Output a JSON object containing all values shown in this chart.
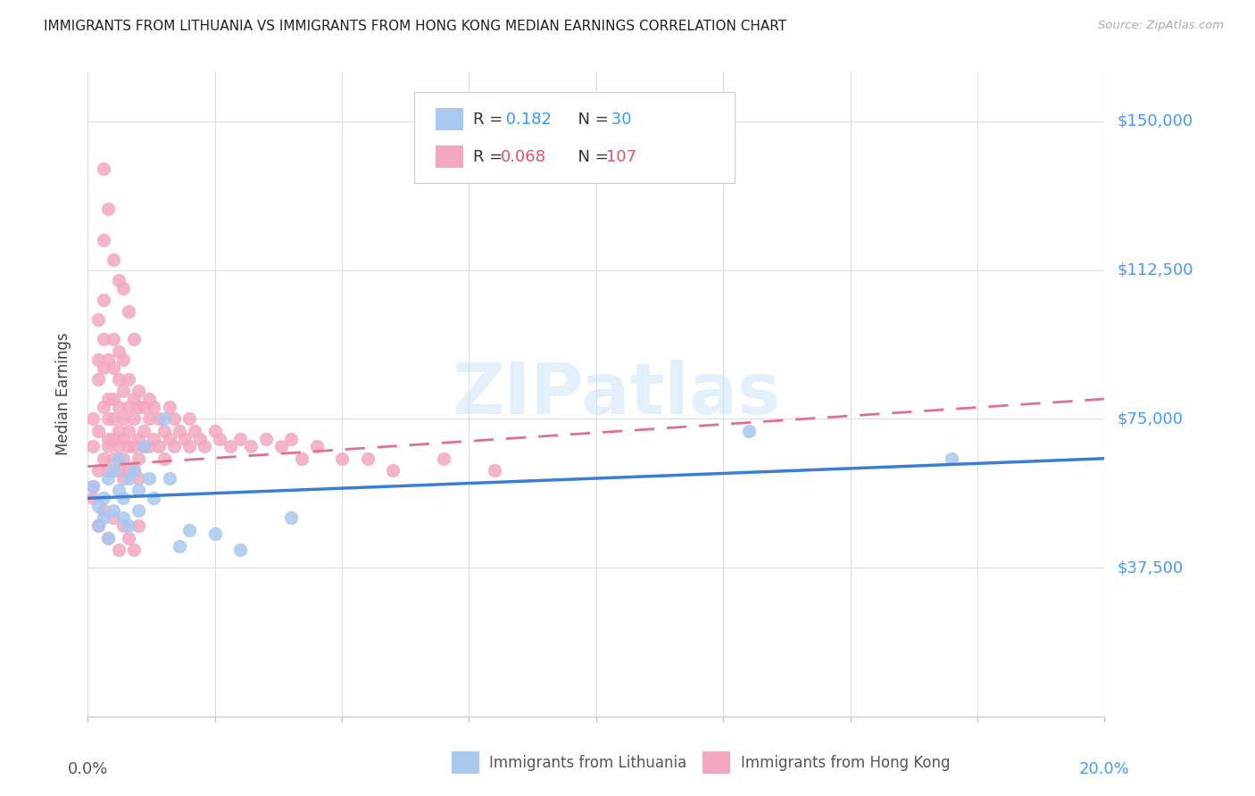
{
  "title": "IMMIGRANTS FROM LITHUANIA VS IMMIGRANTS FROM HONG KONG MEDIAN EARNINGS CORRELATION CHART",
  "source": "Source: ZipAtlas.com",
  "ylabel": "Median Earnings",
  "yticks": [
    0,
    37500,
    75000,
    112500,
    150000
  ],
  "ytick_labels": [
    "",
    "$37,500",
    "$75,000",
    "$112,500",
    "$150,000"
  ],
  "xlim": [
    0.0,
    0.2
  ],
  "ylim": [
    0,
    162500
  ],
  "lithuania_color": "#a8c8f0",
  "hong_kong_color": "#f4a8c0",
  "lithuania_line_color": "#3a7fd5",
  "hong_kong_line_color": "#e07090",
  "watermark": "ZIPatlas",
  "background_color": "#ffffff",
  "grid_color": "#dddddd",
  "title_color": "#222222",
  "source_color": "#aaaaaa",
  "ytick_color": "#4499ff",
  "xtick_right_color": "#4499ff",
  "legend_r1_val": "0.182",
  "legend_n1_val": "30",
  "legend_r2_val": "0.068",
  "legend_n2_val": "107",
  "lithuania_x": [
    0.001,
    0.002,
    0.002,
    0.003,
    0.003,
    0.004,
    0.004,
    0.005,
    0.005,
    0.006,
    0.006,
    0.007,
    0.007,
    0.008,
    0.008,
    0.009,
    0.01,
    0.01,
    0.011,
    0.012,
    0.013,
    0.015,
    0.016,
    0.018,
    0.02,
    0.025,
    0.03,
    0.04,
    0.13,
    0.17
  ],
  "lithuania_y": [
    58000,
    53000,
    48000,
    50000,
    55000,
    60000,
    45000,
    52000,
    62000,
    57000,
    65000,
    50000,
    55000,
    60000,
    48000,
    62000,
    57000,
    52000,
    68000,
    60000,
    55000,
    75000,
    60000,
    43000,
    47000,
    46000,
    42000,
    50000,
    72000,
    65000
  ],
  "hong_kong_x": [
    0.001,
    0.001,
    0.001,
    0.002,
    0.002,
    0.002,
    0.002,
    0.002,
    0.003,
    0.003,
    0.003,
    0.003,
    0.003,
    0.003,
    0.004,
    0.004,
    0.004,
    0.004,
    0.004,
    0.004,
    0.005,
    0.005,
    0.005,
    0.005,
    0.005,
    0.005,
    0.006,
    0.006,
    0.006,
    0.006,
    0.006,
    0.006,
    0.007,
    0.007,
    0.007,
    0.007,
    0.007,
    0.007,
    0.008,
    0.008,
    0.008,
    0.008,
    0.008,
    0.009,
    0.009,
    0.009,
    0.009,
    0.01,
    0.01,
    0.01,
    0.01,
    0.01,
    0.011,
    0.011,
    0.011,
    0.012,
    0.012,
    0.012,
    0.013,
    0.013,
    0.014,
    0.014,
    0.015,
    0.015,
    0.016,
    0.016,
    0.017,
    0.017,
    0.018,
    0.019,
    0.02,
    0.02,
    0.021,
    0.022,
    0.023,
    0.025,
    0.026,
    0.028,
    0.03,
    0.032,
    0.035,
    0.038,
    0.04,
    0.042,
    0.045,
    0.05,
    0.055,
    0.06,
    0.07,
    0.08,
    0.001,
    0.002,
    0.003,
    0.004,
    0.005,
    0.006,
    0.007,
    0.008,
    0.009,
    0.01,
    0.003,
    0.004,
    0.005,
    0.006,
    0.007,
    0.008,
    0.009
  ],
  "hong_kong_y": [
    58000,
    68000,
    75000,
    62000,
    72000,
    85000,
    90000,
    100000,
    65000,
    78000,
    88000,
    95000,
    105000,
    120000,
    70000,
    80000,
    90000,
    75000,
    68000,
    62000,
    70000,
    80000,
    88000,
    95000,
    75000,
    65000,
    72000,
    85000,
    92000,
    78000,
    68000,
    62000,
    75000,
    82000,
    90000,
    70000,
    65000,
    60000,
    78000,
    85000,
    72000,
    68000,
    62000,
    80000,
    75000,
    68000,
    62000,
    82000,
    78000,
    70000,
    65000,
    60000,
    78000,
    72000,
    68000,
    80000,
    75000,
    68000,
    78000,
    70000,
    75000,
    68000,
    72000,
    65000,
    78000,
    70000,
    75000,
    68000,
    72000,
    70000,
    75000,
    68000,
    72000,
    70000,
    68000,
    72000,
    70000,
    68000,
    70000,
    68000,
    70000,
    68000,
    70000,
    65000,
    68000,
    65000,
    65000,
    62000,
    65000,
    62000,
    55000,
    48000,
    52000,
    45000,
    50000,
    42000,
    48000,
    45000,
    42000,
    48000,
    138000,
    128000,
    115000,
    110000,
    108000,
    102000,
    95000
  ]
}
